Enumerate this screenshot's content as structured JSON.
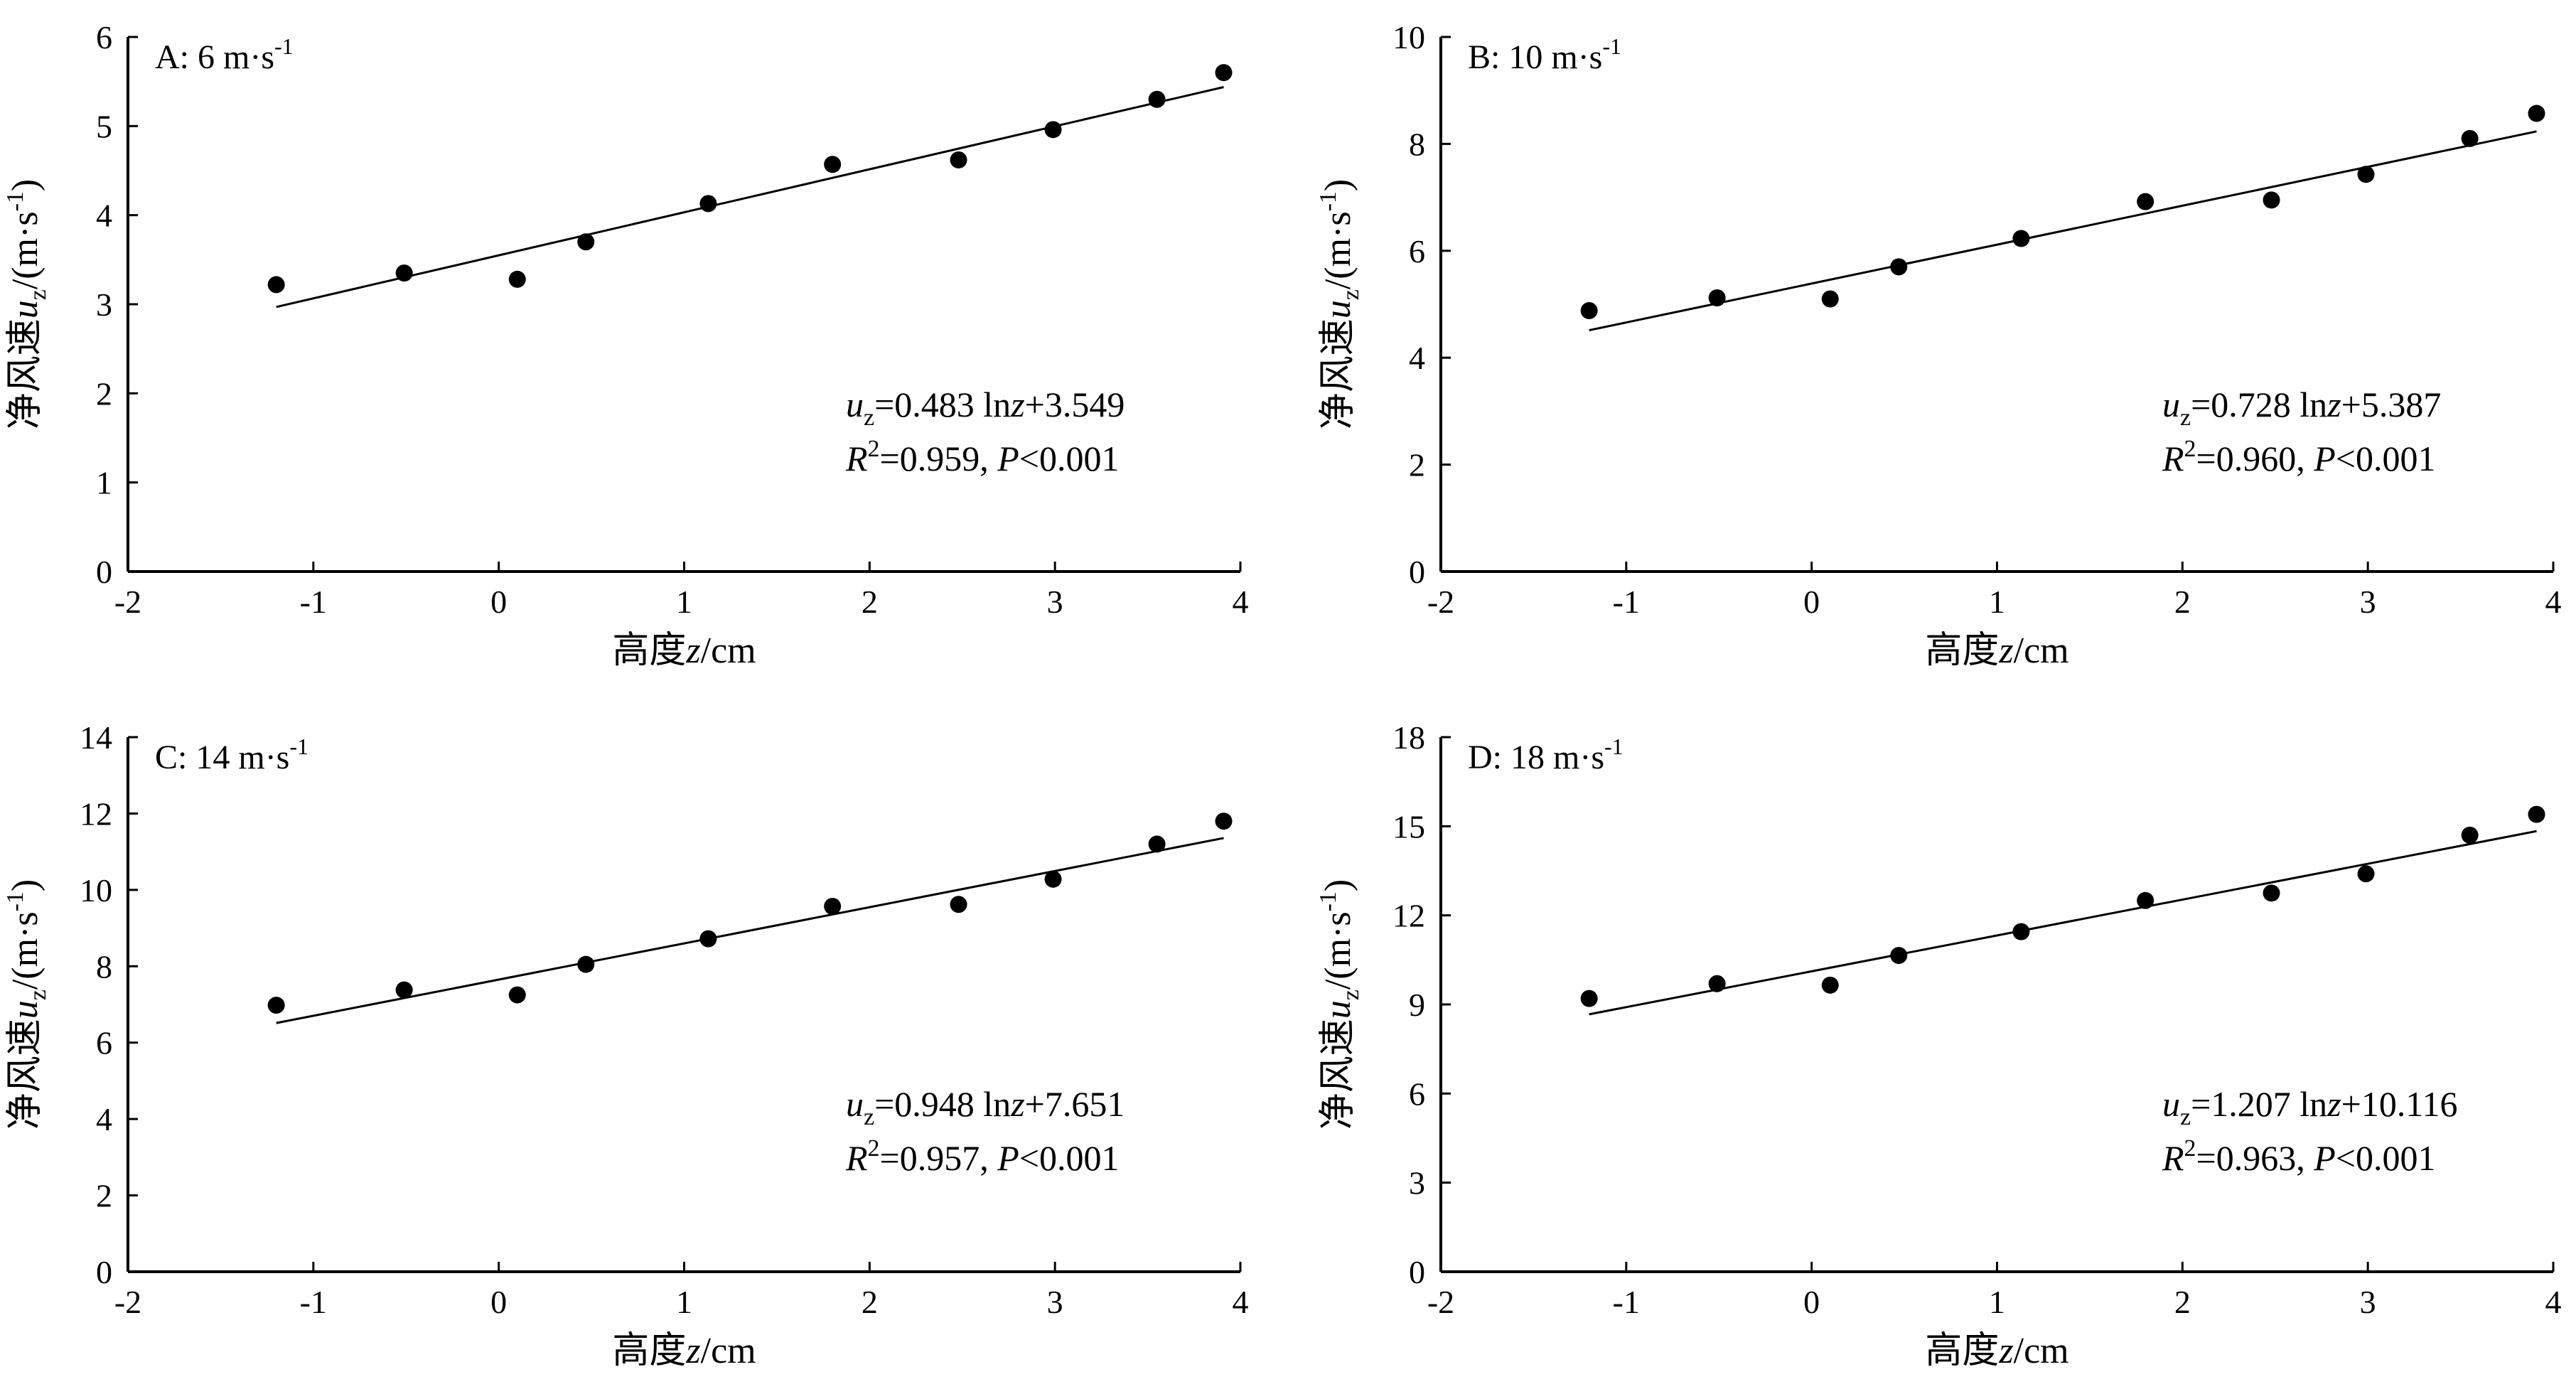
{
  "chart_data": [
    {
      "type": "scatter",
      "panel_label": "A: 6 m·s",
      "panel_label_sup": "-1",
      "xlabel_cn": "高度",
      "xlabel_var": "z",
      "xlabel_unit": "/cm",
      "ylabel_cn": "净风速",
      "ylabel_var": "u",
      "ylabel_sub": "z",
      "ylabel_unit": "/(m·s",
      "ylabel_unit_sup": "-1",
      "ylabel_close": ")",
      "xlim": [
        -2,
        4
      ],
      "ylim": [
        0,
        6
      ],
      "xticks": [
        -2,
        -1,
        0,
        1,
        2,
        3,
        4
      ],
      "yticks": [
        0,
        1,
        2,
        3,
        4,
        5,
        6
      ],
      "x": [
        -1.2,
        -0.51,
        0.1,
        0.47,
        1.13,
        1.8,
        2.48,
        2.99,
        3.55,
        3.91
      ],
      "y": [
        3.22,
        3.35,
        3.28,
        3.7,
        4.13,
        4.57,
        4.62,
        4.96,
        5.3,
        5.6
      ],
      "fit": {
        "slope": 0.483,
        "intercept": 3.549,
        "x_range": [
          -1.2,
          3.91
        ]
      },
      "eq_var": "u",
      "eq_sub": "z",
      "eq_text": "=0.483 ln",
      "eq_z": "z",
      "eq_tail": "+3.549",
      "r2_R": "R",
      "r2_sup": "2",
      "r2_text": "=0.959, ",
      "r2_P": "P",
      "r2_tail": "<0.001"
    },
    {
      "type": "scatter",
      "panel_label": "B: 10 m·s",
      "panel_label_sup": "-1",
      "xlabel_cn": "高度",
      "xlabel_var": "z",
      "xlabel_unit": "/cm",
      "ylabel_cn": "净风速",
      "ylabel_var": "u",
      "ylabel_sub": "z",
      "ylabel_unit": "/(m·s",
      "ylabel_unit_sup": "-1",
      "ylabel_close": ")",
      "xlim": [
        -2,
        4
      ],
      "ylim": [
        0,
        10
      ],
      "xticks": [
        -2,
        -1,
        0,
        1,
        2,
        3,
        4
      ],
      "yticks": [
        0,
        2,
        4,
        6,
        8,
        10
      ],
      "x": [
        -1.2,
        -0.51,
        0.1,
        0.47,
        1.13,
        1.8,
        2.48,
        2.99,
        3.55,
        3.91
      ],
      "y": [
        4.88,
        5.12,
        5.1,
        5.7,
        6.23,
        6.92,
        6.95,
        7.43,
        8.1,
        8.57
      ],
      "fit": {
        "slope": 0.728,
        "intercept": 5.387,
        "x_range": [
          -1.2,
          3.91
        ]
      },
      "eq_var": "u",
      "eq_sub": "z",
      "eq_text": "=0.728 ln",
      "eq_z": "z",
      "eq_tail": "+5.387",
      "r2_R": "R",
      "r2_sup": "2",
      "r2_text": "=0.960, ",
      "r2_P": "P",
      "r2_tail": "<0.001"
    },
    {
      "type": "scatter",
      "panel_label": "C: 14 m·s",
      "panel_label_sup": "-1",
      "xlabel_cn": "高度",
      "xlabel_var": "z",
      "xlabel_unit": "/cm",
      "ylabel_cn": "净风速",
      "ylabel_var": "u",
      "ylabel_sub": "z",
      "ylabel_unit": "/(m·s",
      "ylabel_unit_sup": "-1",
      "ylabel_close": ")",
      "xlim": [
        -2,
        4
      ],
      "ylim": [
        0,
        14
      ],
      "xticks": [
        -2,
        -1,
        0,
        1,
        2,
        3,
        4
      ],
      "yticks": [
        0,
        2,
        4,
        6,
        8,
        10,
        12,
        14
      ],
      "x": [
        -1.2,
        -0.51,
        0.1,
        0.47,
        1.13,
        1.8,
        2.48,
        2.99,
        3.55,
        3.91
      ],
      "y": [
        6.98,
        7.38,
        7.25,
        8.05,
        8.72,
        9.57,
        9.62,
        10.28,
        11.2,
        11.8
      ],
      "fit": {
        "slope": 0.948,
        "intercept": 7.651,
        "x_range": [
          -1.2,
          3.91
        ]
      },
      "eq_var": "u",
      "eq_sub": "z",
      "eq_text": "=0.948 ln",
      "eq_z": "z",
      "eq_tail": "+7.651",
      "r2_R": "R",
      "r2_sup": "2",
      "r2_text": "=0.957, ",
      "r2_P": "P",
      "r2_tail": "<0.001"
    },
    {
      "type": "scatter",
      "panel_label": "D: 18 m·s",
      "panel_label_sup": "-1",
      "xlabel_cn": "高度",
      "xlabel_var": "z",
      "xlabel_unit": "/cm",
      "ylabel_cn": "净风速",
      "ylabel_var": "u",
      "ylabel_sub": "z",
      "ylabel_unit": "/(m·s",
      "ylabel_unit_sup": "-1",
      "ylabel_close": ")",
      "xlim": [
        -2,
        4
      ],
      "ylim": [
        0,
        18
      ],
      "xticks": [
        -2,
        -1,
        0,
        1,
        2,
        3,
        4
      ],
      "yticks": [
        0,
        3,
        6,
        9,
        12,
        15,
        18
      ],
      "x": [
        -1.2,
        -0.51,
        0.1,
        0.47,
        1.13,
        1.8,
        2.48,
        2.99,
        3.55,
        3.91
      ],
      "y": [
        9.2,
        9.7,
        9.65,
        10.65,
        11.45,
        12.5,
        12.75,
        13.4,
        14.7,
        15.4
      ],
      "fit": {
        "slope": 1.207,
        "intercept": 10.116,
        "x_range": [
          -1.2,
          3.91
        ]
      },
      "eq_var": "u",
      "eq_sub": "z",
      "eq_text": "=1.207 ln",
      "eq_z": "z",
      "eq_tail": "+10.116",
      "r2_R": "R",
      "r2_sup": "2",
      "r2_text": "=0.963, ",
      "r2_P": "P",
      "r2_tail": "<0.001"
    }
  ]
}
